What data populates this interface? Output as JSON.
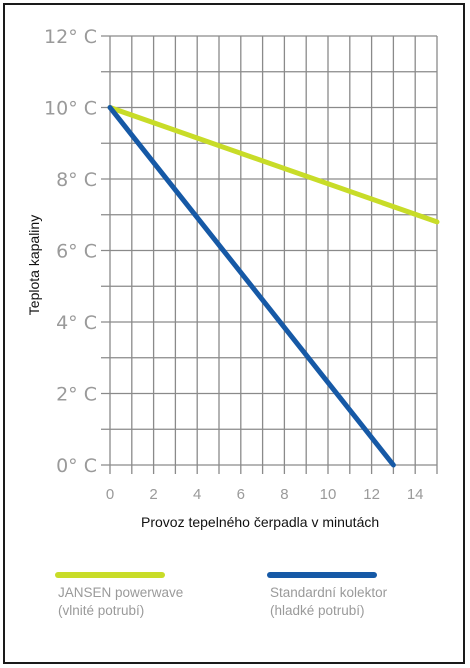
{
  "chart_data": {
    "type": "line",
    "xlabel": "Provoz tepelného čerpadla v minutách",
    "ylabel": "Teplota kapaliny",
    "xlim": [
      0,
      15
    ],
    "ylim": [
      0,
      12
    ],
    "x_ticks": [
      "0",
      "2",
      "4",
      "6",
      "8",
      "10",
      "12",
      "14"
    ],
    "y_ticks": [
      "0° C",
      "2° C",
      "4° C",
      "6° C",
      "8° C",
      "10° C",
      "12° C"
    ],
    "grid": true,
    "series": [
      {
        "name_line1": "JANSEN powerwave",
        "name_line2": "(vlnité potrubí)",
        "color": "#c8dc28",
        "x": [
          0,
          15
        ],
        "y": [
          10,
          6.8
        ]
      },
      {
        "name_line1": "Standardní kolektor",
        "name_line2": "(hladké potrubí)",
        "color": "#1659a6",
        "x": [
          0,
          13
        ],
        "y": [
          10,
          0
        ]
      }
    ],
    "legend_position": "bottom"
  }
}
